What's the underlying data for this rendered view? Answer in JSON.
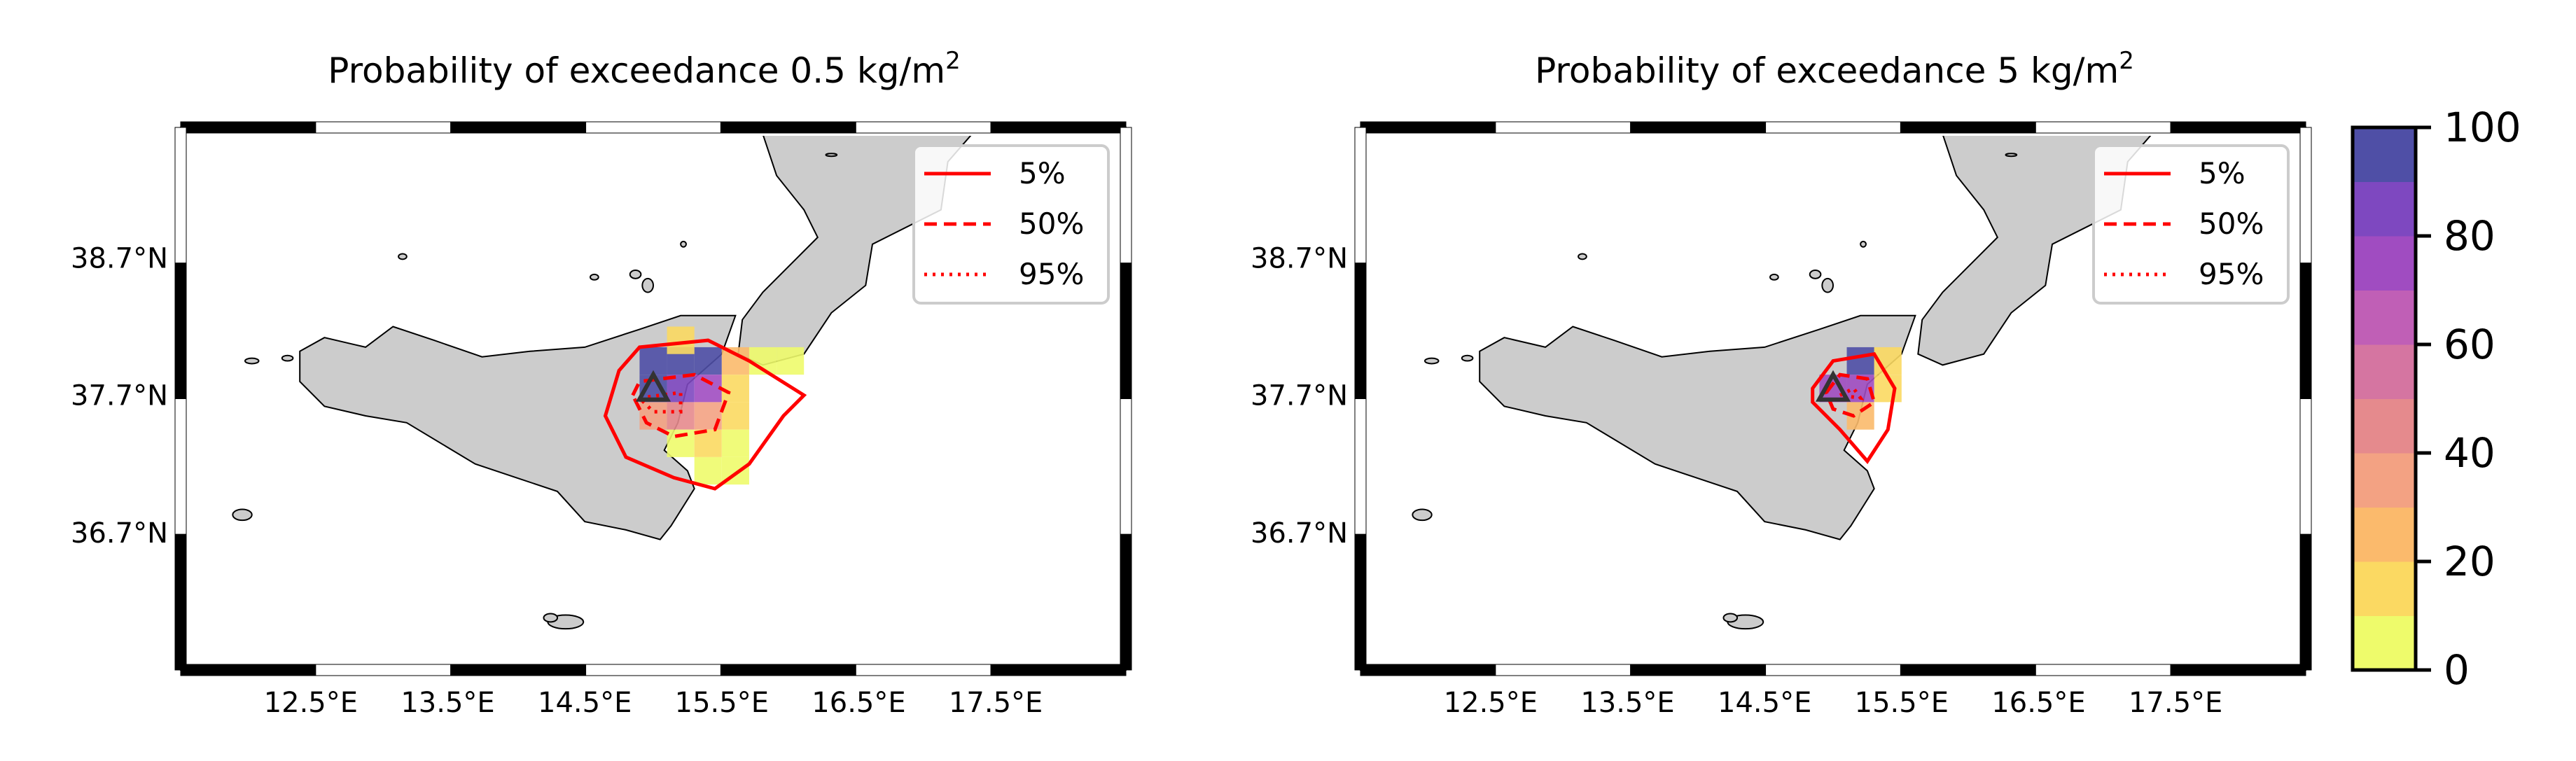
{
  "figure": {
    "panels": [
      {
        "id": "left",
        "title_prefix": "Probability of exceedance 0.5 kg/m",
        "title_sup": "2",
        "x_tick_labels": [
          "12.5°E",
          "13.5°E",
          "14.5°E",
          "15.5°E",
          "16.5°E",
          "17.5°E"
        ],
        "y_tick_labels": [
          "38.7°N",
          "37.7°N",
          "36.7°N"
        ],
        "legend": [
          {
            "label": "5%",
            "style": "solid"
          },
          {
            "label": "50%",
            "style": "dashed"
          },
          {
            "label": "95%",
            "style": "dotted"
          }
        ],
        "probability_cells": [
          {
            "lon": 15.0,
            "lat": 37.95,
            "value": 95
          },
          {
            "lon": 15.2,
            "lat": 37.95,
            "value": 95
          },
          {
            "lon": 15.4,
            "lat": 37.95,
            "value": 95
          },
          {
            "lon": 15.2,
            "lat": 38.1,
            "value": 15
          },
          {
            "lon": 15.6,
            "lat": 37.95,
            "value": 20
          },
          {
            "lon": 15.8,
            "lat": 37.95,
            "value": 8
          },
          {
            "lon": 16.0,
            "lat": 37.95,
            "value": 5
          },
          {
            "lon": 15.0,
            "lat": 37.75,
            "value": 90
          },
          {
            "lon": 15.2,
            "lat": 37.75,
            "value": 85
          },
          {
            "lon": 15.4,
            "lat": 37.75,
            "value": 75
          },
          {
            "lon": 15.6,
            "lat": 37.75,
            "value": 15
          },
          {
            "lon": 15.0,
            "lat": 37.55,
            "value": 30
          },
          {
            "lon": 15.2,
            "lat": 37.55,
            "value": 45
          },
          {
            "lon": 15.4,
            "lat": 37.55,
            "value": 35
          },
          {
            "lon": 15.6,
            "lat": 37.55,
            "value": 10
          },
          {
            "lon": 15.2,
            "lat": 37.35,
            "value": 8
          },
          {
            "lon": 15.4,
            "lat": 37.35,
            "value": 10
          },
          {
            "lon": 15.6,
            "lat": 37.35,
            "value": 5
          },
          {
            "lon": 15.4,
            "lat": 37.15,
            "value": 5
          },
          {
            "lon": 15.6,
            "lat": 37.15,
            "value": 3
          }
        ],
        "contours": {
          "p5": [
            [
              14.75,
              37.88
            ],
            [
              14.9,
              38.05
            ],
            [
              15.4,
              38.1
            ],
            [
              15.7,
              37.95
            ],
            [
              16.1,
              37.7
            ],
            [
              15.95,
              37.55
            ],
            [
              15.7,
              37.2
            ],
            [
              15.45,
              37.02
            ],
            [
              15.15,
              37.1
            ],
            [
              14.8,
              37.25
            ],
            [
              14.65,
              37.55
            ]
          ],
          "p50": [
            [
              14.85,
              37.7
            ],
            [
              14.9,
              37.8
            ],
            [
              15.3,
              37.85
            ],
            [
              15.55,
              37.72
            ],
            [
              15.45,
              37.45
            ],
            [
              15.15,
              37.4
            ],
            [
              14.95,
              37.5
            ]
          ],
          "p95": [
            [
              14.9,
              37.68
            ],
            [
              15.2,
              37.72
            ],
            [
              15.2,
              37.58
            ],
            [
              15.0,
              37.58
            ]
          ]
        },
        "vent": {
          "lon": 15.0,
          "lat": 37.75
        }
      },
      {
        "id": "right",
        "title_prefix": "Probability of exceedance 5 kg/m",
        "title_sup": "2",
        "x_tick_labels": [
          "12.5°E",
          "13.5°E",
          "14.5°E",
          "15.5°E",
          "16.5°E",
          "17.5°E"
        ],
        "y_tick_labels": [
          "38.7°N",
          "37.7°N",
          "36.7°N"
        ],
        "legend": [
          {
            "label": "5%",
            "style": "solid"
          },
          {
            "label": "50%",
            "style": "dashed"
          },
          {
            "label": "95%",
            "style": "dotted"
          }
        ],
        "probability_cells": [
          {
            "lon": 15.2,
            "lat": 37.95,
            "value": 95
          },
          {
            "lon": 15.0,
            "lat": 37.75,
            "value": 75
          },
          {
            "lon": 15.2,
            "lat": 37.75,
            "value": 70
          },
          {
            "lon": 15.4,
            "lat": 37.95,
            "value": 10
          },
          {
            "lon": 15.4,
            "lat": 37.75,
            "value": 15
          },
          {
            "lon": 15.2,
            "lat": 37.55,
            "value": 20
          }
        ],
        "contours": {
          "p5": [
            [
              14.85,
              37.75
            ],
            [
              15.0,
              37.95
            ],
            [
              15.3,
              38.0
            ],
            [
              15.45,
              37.75
            ],
            [
              15.4,
              37.45
            ],
            [
              15.25,
              37.22
            ],
            [
              15.05,
              37.45
            ],
            [
              14.85,
              37.65
            ]
          ],
          "p50": [
            [
              14.95,
              37.72
            ],
            [
              15.05,
              37.85
            ],
            [
              15.25,
              37.82
            ],
            [
              15.3,
              37.65
            ],
            [
              15.15,
              37.55
            ],
            [
              15.0,
              37.6
            ]
          ],
          "p95": [
            [
              15.05,
              37.7
            ],
            [
              15.15,
              37.75
            ],
            [
              15.2,
              37.68
            ]
          ]
        },
        "vent": {
          "lon": 15.0,
          "lat": 37.75
        }
      }
    ],
    "colorbar": {
      "tick_labels": [
        "0",
        "20",
        "40",
        "60",
        "80",
        "100"
      ],
      "colors": [
        "#eefb6b",
        "#fbd962",
        "#fbba6c",
        "#f3a283",
        "#e58a8d",
        "#d575a1",
        "#c05fb6",
        "#a04cc1",
        "#7e48c0",
        "#4f4fa6"
      ]
    },
    "colors": {
      "land": "#cccccc",
      "coast": "#000000",
      "contour": "#ff0000",
      "vent": "#333333"
    }
  }
}
